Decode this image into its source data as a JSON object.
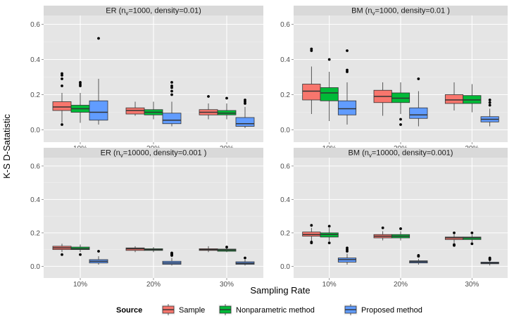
{
  "chart_data": {
    "type": "boxplot",
    "xlabel": "Sampling Rate",
    "ylabel": "K-S D-Satatistic",
    "ylim": [
      -0.07,
      0.65
    ],
    "yticks": [
      0.0,
      0.2,
      0.4,
      0.6
    ],
    "ytick_labels": [
      "0.0",
      "0.2",
      "0.4",
      "0.6"
    ],
    "categories": [
      "10%",
      "20%",
      "30%"
    ],
    "grid": true,
    "legend": {
      "title": "Source",
      "position": "bottom",
      "entries": [
        "Sample",
        "Nonparametric method",
        "Proposed method"
      ],
      "colors": [
        "#F8766D",
        "#00BA38",
        "#619CFF"
      ]
    },
    "panels": [
      {
        "title_prefix": "ER (n",
        "title_sub": "v",
        "title_suffix": "=1000, density=0.01)",
        "series": [
          {
            "name": "Sample",
            "boxes": [
              {
                "min": 0.04,
                "q1": 0.11,
                "median": 0.13,
                "q3": 0.16,
                "max": 0.21,
                "outliers": [
                  0.03,
                  0.25,
                  0.29,
                  0.31,
                  0.32
                ]
              },
              {
                "min": 0.08,
                "q1": 0.09,
                "median": 0.11,
                "q3": 0.125,
                "max": 0.16,
                "outliers": []
              },
              {
                "min": 0.06,
                "q1": 0.085,
                "median": 0.1,
                "q3": 0.115,
                "max": 0.15,
                "outliers": [
                  0.19
                ]
              }
            ]
          },
          {
            "name": "Nonparametric method",
            "boxes": [
              {
                "min": 0.04,
                "q1": 0.1,
                "median": 0.12,
                "q3": 0.14,
                "max": 0.21,
                "outliers": [
                  0.25,
                  0.26,
                  0.27
                ]
              },
              {
                "min": 0.06,
                "q1": 0.085,
                "median": 0.1,
                "q3": 0.115,
                "max": 0.16,
                "outliers": []
              },
              {
                "min": 0.06,
                "q1": 0.085,
                "median": 0.095,
                "q3": 0.11,
                "max": 0.15,
                "outliers": [
                  0.18
                ]
              }
            ]
          },
          {
            "name": "Proposed method",
            "boxes": [
              {
                "min": 0.03,
                "q1": 0.055,
                "median": 0.1,
                "q3": 0.165,
                "max": 0.29,
                "outliers": [
                  0.52
                ]
              },
              {
                "min": 0.02,
                "q1": 0.035,
                "median": 0.055,
                "q3": 0.095,
                "max": 0.16,
                "outliers": [
                  0.2,
                  0.22,
                  0.24,
                  0.25,
                  0.27
                ]
              },
              {
                "min": 0.01,
                "q1": 0.02,
                "median": 0.035,
                "q3": 0.07,
                "max": 0.13,
                "outliers": [
                  0.15,
                  0.16,
                  0.17
                ]
              }
            ]
          }
        ]
      },
      {
        "title_prefix": "BM (n",
        "title_sub": "v",
        "title_suffix": "=1000, density=0.01 )",
        "series": [
          {
            "name": "Sample",
            "boxes": [
              {
                "min": 0.09,
                "q1": 0.17,
                "median": 0.22,
                "q3": 0.26,
                "max": 0.36,
                "outliers": [
                  0.45,
                  0.46
                ]
              },
              {
                "min": 0.08,
                "q1": 0.155,
                "median": 0.19,
                "q3": 0.225,
                "max": 0.27,
                "outliers": []
              },
              {
                "min": 0.11,
                "q1": 0.15,
                "median": 0.17,
                "q3": 0.2,
                "max": 0.27,
                "outliers": []
              }
            ]
          },
          {
            "name": "Nonparametric method",
            "boxes": [
              {
                "min": 0.05,
                "q1": 0.165,
                "median": 0.21,
                "q3": 0.24,
                "max": 0.33,
                "outliers": [
                  0.4
                ]
              },
              {
                "min": 0.09,
                "q1": 0.155,
                "median": 0.18,
                "q3": 0.21,
                "max": 0.27,
                "outliers": [
                  0.03,
                  0.06
                ]
              },
              {
                "min": 0.1,
                "q1": 0.15,
                "median": 0.17,
                "q3": 0.195,
                "max": 0.26,
                "outliers": []
              }
            ]
          },
          {
            "name": "Proposed method",
            "boxes": [
              {
                "min": 0.03,
                "q1": 0.085,
                "median": 0.12,
                "q3": 0.165,
                "max": 0.27,
                "outliers": [
                  0.33,
                  0.34,
                  0.45
                ]
              },
              {
                "min": 0.02,
                "q1": 0.065,
                "median": 0.085,
                "q3": 0.125,
                "max": 0.22,
                "outliers": [
                  0.29
                ]
              },
              {
                "min": 0.02,
                "q1": 0.045,
                "median": 0.06,
                "q3": 0.075,
                "max": 0.12,
                "outliers": [
                  0.14,
                  0.155,
                  0.17
                ]
              }
            ]
          }
        ]
      },
      {
        "title_prefix": "ER (n",
        "title_sub": "v",
        "title_suffix": "=10000, density=0.001 )",
        "series": [
          {
            "name": "Sample",
            "boxes": [
              {
                "min": 0.085,
                "q1": 0.1,
                "median": 0.11,
                "q3": 0.12,
                "max": 0.135,
                "outliers": [
                  0.07
                ]
              },
              {
                "min": 0.085,
                "q1": 0.095,
                "median": 0.105,
                "q3": 0.11,
                "max": 0.12,
                "outliers": []
              },
              {
                "min": 0.085,
                "q1": 0.095,
                "median": 0.1,
                "q3": 0.105,
                "max": 0.12,
                "outliers": []
              }
            ]
          },
          {
            "name": "Nonparametric method",
            "boxes": [
              {
                "min": 0.085,
                "q1": 0.1,
                "median": 0.105,
                "q3": 0.115,
                "max": 0.13,
                "outliers": [
                  0.07
                ]
              },
              {
                "min": 0.085,
                "q1": 0.095,
                "median": 0.1,
                "q3": 0.105,
                "max": 0.115,
                "outliers": []
              },
              {
                "min": 0.085,
                "q1": 0.09,
                "median": 0.097,
                "q3": 0.103,
                "max": 0.11,
                "outliers": [
                  0.115
                ]
              }
            ]
          },
          {
            "name": "Proposed method",
            "boxes": [
              {
                "min": 0.01,
                "q1": 0.02,
                "median": 0.03,
                "q3": 0.04,
                "max": 0.06,
                "outliers": [
                  0.09
                ]
              },
              {
                "min": 0.005,
                "q1": 0.012,
                "median": 0.02,
                "q3": 0.03,
                "max": 0.05,
                "outliers": [
                  0.065,
                  0.07,
                  0.075,
                  0.08
                ]
              },
              {
                "min": 0.005,
                "q1": 0.012,
                "median": 0.018,
                "q3": 0.027,
                "max": 0.04,
                "outliers": [
                  0.05
                ]
              }
            ]
          }
        ]
      },
      {
        "title_prefix": "BM (n",
        "title_sub": "v",
        "title_suffix": "=10000, density=0.001)",
        "series": [
          {
            "name": "Sample",
            "boxes": [
              {
                "min": 0.15,
                "q1": 0.18,
                "median": 0.19,
                "q3": 0.205,
                "max": 0.23,
                "outliers": [
                  0.14,
                  0.145,
                  0.245
                ]
              },
              {
                "min": 0.155,
                "q1": 0.17,
                "median": 0.18,
                "q3": 0.19,
                "max": 0.21,
                "outliers": [
                  0.23
                ]
              },
              {
                "min": 0.14,
                "q1": 0.16,
                "median": 0.17,
                "q3": 0.175,
                "max": 0.19,
                "outliers": [
                  0.125,
                  0.13,
                  0.2
                ]
              }
            ]
          },
          {
            "name": "Nonparametric method",
            "boxes": [
              {
                "min": 0.15,
                "q1": 0.175,
                "median": 0.19,
                "q3": 0.2,
                "max": 0.23,
                "outliers": [
                  0.14,
                  0.24
                ]
              },
              {
                "min": 0.155,
                "q1": 0.17,
                "median": 0.18,
                "q3": 0.19,
                "max": 0.21,
                "outliers": [
                  0.225
                ]
              },
              {
                "min": 0.145,
                "q1": 0.16,
                "median": 0.17,
                "q3": 0.175,
                "max": 0.19,
                "outliers": [
                  0.135,
                  0.2
                ]
              }
            ]
          },
          {
            "name": "Proposed method",
            "boxes": [
              {
                "min": 0.01,
                "q1": 0.025,
                "median": 0.04,
                "q3": 0.05,
                "max": 0.075,
                "outliers": [
                  0.09,
                  0.1,
                  0.11
                ]
              },
              {
                "min": 0.01,
                "q1": 0.02,
                "median": 0.027,
                "q3": 0.033,
                "max": 0.045,
                "outliers": [
                  0.06,
                  0.065
                ]
              },
              {
                "min": 0.005,
                "q1": 0.015,
                "median": 0.02,
                "q3": 0.025,
                "max": 0.035,
                "outliers": [
                  0.04,
                  0.045,
                  0.05
                ]
              }
            ]
          }
        ]
      }
    ]
  }
}
